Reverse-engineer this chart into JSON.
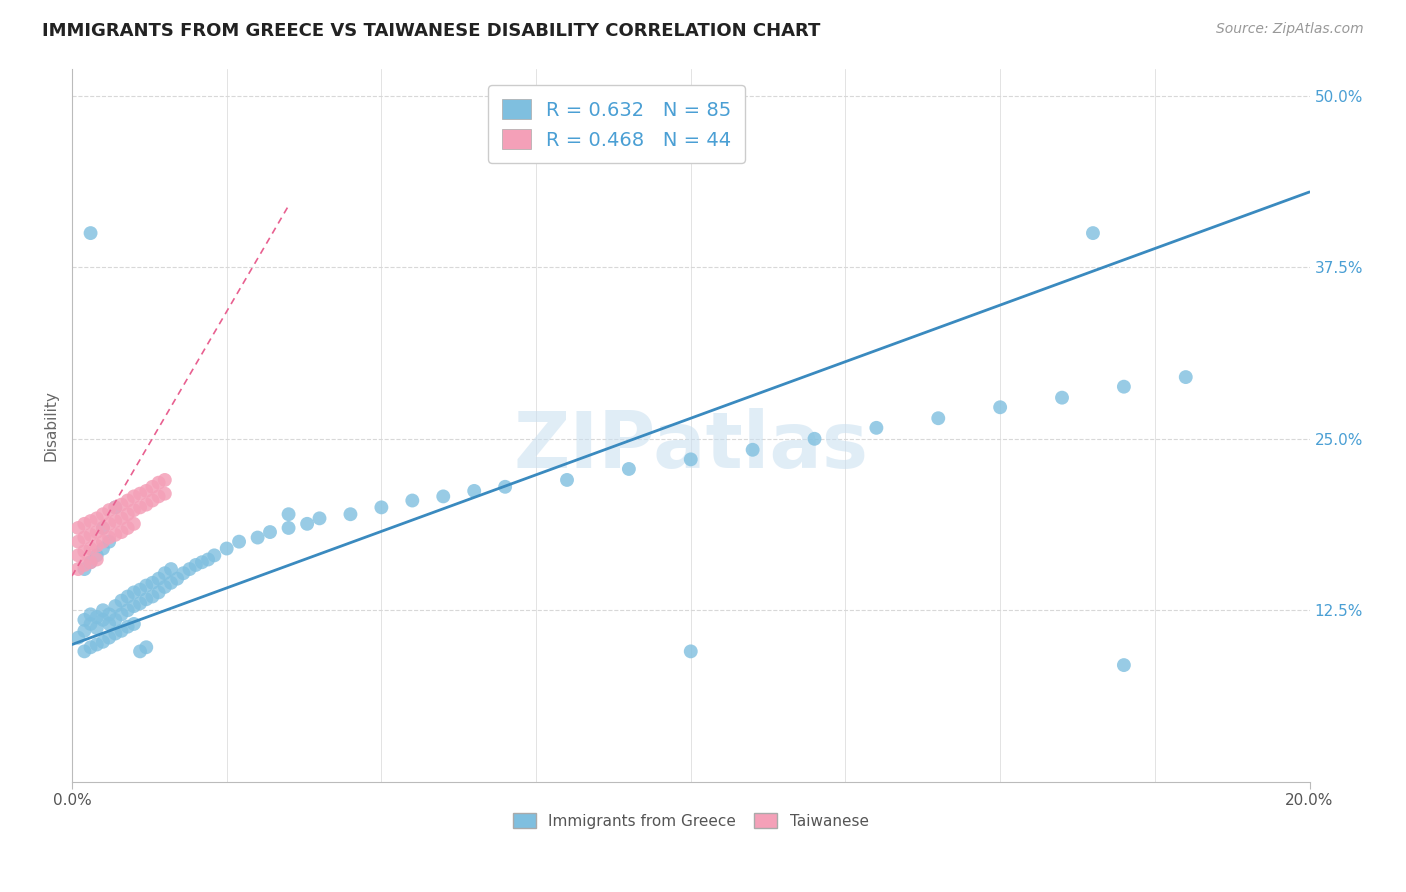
{
  "title": "IMMIGRANTS FROM GREECE VS TAIWANESE DISABILITY CORRELATION CHART",
  "source": "Source: ZipAtlas.com",
  "ylabel": "Disability",
  "ytick_vals": [
    0.125,
    0.25,
    0.375,
    0.5
  ],
  "ytick_labels": [
    "12.5%",
    "25.0%",
    "37.5%",
    "50.0%"
  ],
  "xlim": [
    0.0,
    0.2
  ],
  "ylim": [
    0.0,
    0.52
  ],
  "legend1_label": "R = 0.632   N = 85",
  "legend2_label": "R = 0.468   N = 44",
  "blue_color": "#7fbfdf",
  "pink_color": "#f4a0b8",
  "blue_line_color": "#3a8abf",
  "pink_line_color": "#e86090",
  "ytick_color": "#4a9fd4",
  "grid_color": "#d8d8d8",
  "watermark": "ZIPatlas",
  "blue_x": [
    0.001,
    0.002,
    0.002,
    0.003,
    0.003,
    0.004,
    0.004,
    0.005,
    0.005,
    0.006,
    0.006,
    0.007,
    0.007,
    0.008,
    0.008,
    0.009,
    0.009,
    0.01,
    0.01,
    0.011,
    0.011,
    0.012,
    0.012,
    0.013,
    0.013,
    0.014,
    0.014,
    0.015,
    0.015,
    0.016,
    0.016,
    0.017,
    0.018,
    0.019,
    0.02,
    0.021,
    0.022,
    0.023,
    0.025,
    0.027,
    0.03,
    0.032,
    0.035,
    0.038,
    0.04,
    0.045,
    0.05,
    0.055,
    0.06,
    0.065,
    0.07,
    0.08,
    0.09,
    0.1,
    0.11,
    0.12,
    0.13,
    0.14,
    0.15,
    0.16,
    0.17,
    0.18,
    0.002,
    0.003,
    0.004,
    0.005,
    0.006,
    0.007,
    0.008,
    0.009,
    0.01,
    0.011,
    0.012,
    0.003,
    0.005,
    0.007,
    0.035,
    0.1,
    0.17,
    0.165,
    0.002,
    0.003,
    0.004,
    0.005,
    0.006
  ],
  "blue_y": [
    0.105,
    0.11,
    0.118,
    0.115,
    0.122,
    0.112,
    0.12,
    0.118,
    0.125,
    0.115,
    0.122,
    0.118,
    0.128,
    0.122,
    0.132,
    0.125,
    0.135,
    0.128,
    0.138,
    0.13,
    0.14,
    0.133,
    0.143,
    0.135,
    0.145,
    0.138,
    0.148,
    0.142,
    0.152,
    0.145,
    0.155,
    0.148,
    0.152,
    0.155,
    0.158,
    0.16,
    0.162,
    0.165,
    0.17,
    0.175,
    0.178,
    0.182,
    0.185,
    0.188,
    0.192,
    0.195,
    0.2,
    0.205,
    0.208,
    0.212,
    0.215,
    0.22,
    0.228,
    0.235,
    0.242,
    0.25,
    0.258,
    0.265,
    0.273,
    0.28,
    0.288,
    0.295,
    0.095,
    0.098,
    0.1,
    0.102,
    0.105,
    0.108,
    0.11,
    0.113,
    0.115,
    0.095,
    0.098,
    0.4,
    0.185,
    0.2,
    0.195,
    0.095,
    0.085,
    0.4,
    0.155,
    0.16,
    0.165,
    0.17,
    0.175
  ],
  "pink_x": [
    0.001,
    0.001,
    0.002,
    0.002,
    0.003,
    0.003,
    0.004,
    0.004,
    0.005,
    0.005,
    0.006,
    0.006,
    0.007,
    0.007,
    0.008,
    0.008,
    0.009,
    0.009,
    0.01,
    0.01,
    0.011,
    0.011,
    0.012,
    0.012,
    0.013,
    0.013,
    0.014,
    0.014,
    0.015,
    0.015,
    0.001,
    0.002,
    0.003,
    0.004,
    0.005,
    0.006,
    0.007,
    0.008,
    0.009,
    0.01,
    0.001,
    0.002,
    0.003,
    0.004
  ],
  "pink_y": [
    0.175,
    0.185,
    0.178,
    0.188,
    0.18,
    0.19,
    0.182,
    0.192,
    0.185,
    0.195,
    0.188,
    0.198,
    0.19,
    0.2,
    0.192,
    0.202,
    0.195,
    0.205,
    0.198,
    0.208,
    0.2,
    0.21,
    0.202,
    0.212,
    0.205,
    0.215,
    0.208,
    0.218,
    0.21,
    0.22,
    0.165,
    0.168,
    0.17,
    0.172,
    0.175,
    0.178,
    0.18,
    0.182,
    0.185,
    0.188,
    0.155,
    0.158,
    0.16,
    0.162
  ],
  "blue_line_x": [
    0.0,
    0.2
  ],
  "blue_line_y": [
    0.1,
    0.43
  ],
  "pink_line_x": [
    0.0,
    0.035
  ],
  "pink_line_y": [
    0.15,
    0.42
  ]
}
